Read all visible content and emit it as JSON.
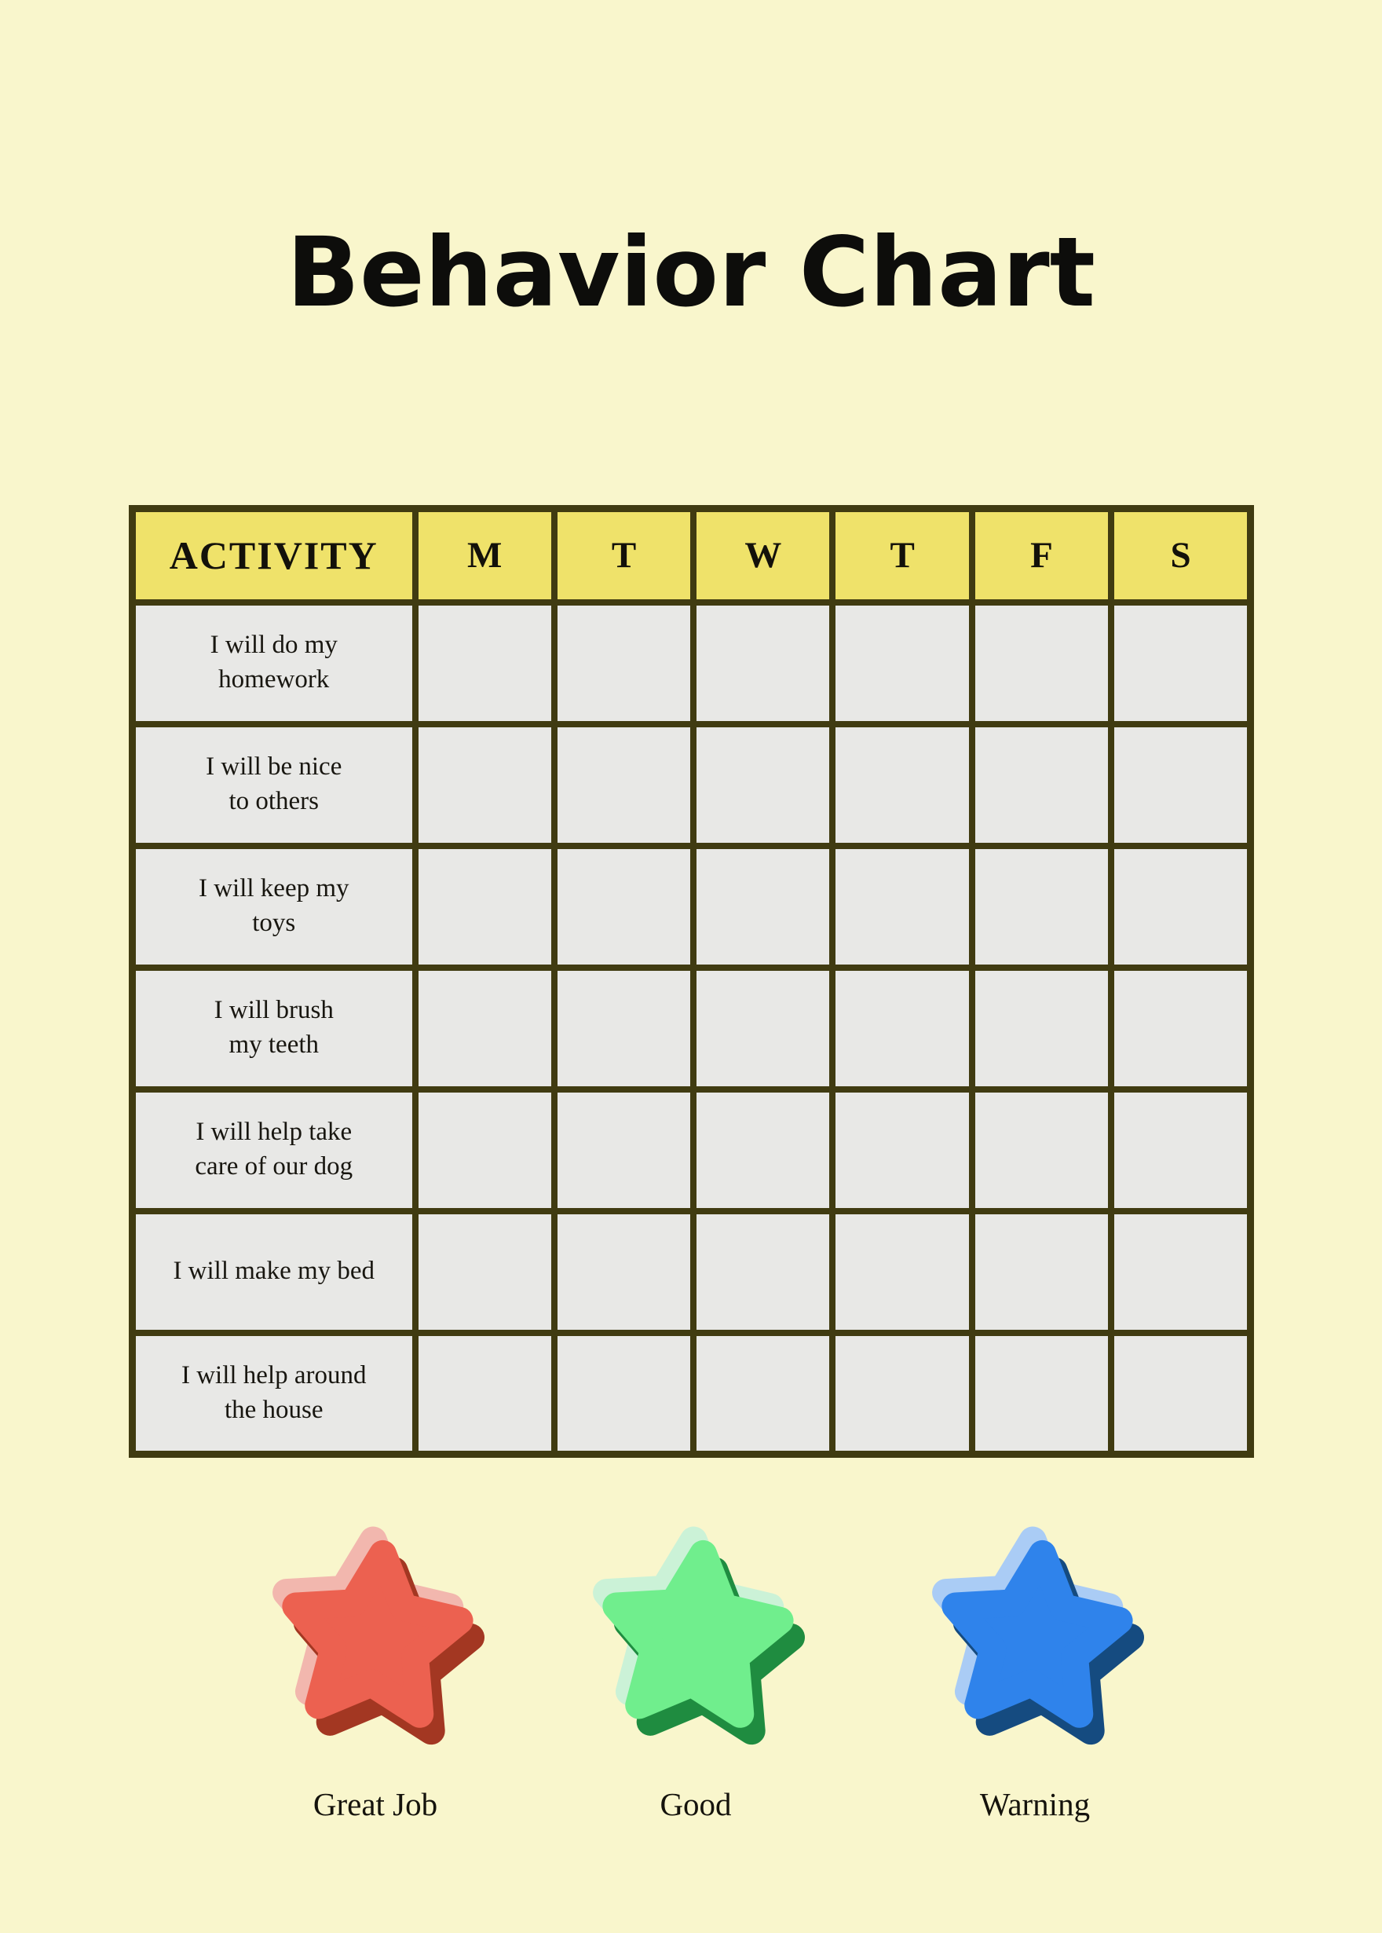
{
  "page_background": "#F9F6CC",
  "title": "Behavior Chart",
  "table": {
    "activity_header": "ACTIVITY",
    "day_headers": [
      "M",
      "T",
      "W",
      "T",
      "F",
      "S"
    ],
    "rows": [
      "I will do my\nhomework",
      "I will be nice\nto others",
      "I will keep my\ntoys",
      "I will brush\nmy teeth",
      "I will help take\ncare of our dog",
      "I will make my bed",
      "I will help around\nthe house"
    ],
    "colors": {
      "header_bg": "#EFE26A",
      "cell_bg": "#E8E8E6",
      "border": "#403B11"
    }
  },
  "legend": {
    "items": [
      {
        "label": "Great Job",
        "icon": "red-star-icon",
        "color": "#EC6150",
        "highlight": "#F2B7AE",
        "shadow": "#A33722"
      },
      {
        "label": "Good",
        "icon": "green-star-icon",
        "color": "#70EE8D",
        "highlight": "#CBF2D7",
        "shadow": "#1F8C40"
      },
      {
        "label": "Warning",
        "icon": "blue-star-icon",
        "color": "#2F83EB",
        "highlight": "#AACCF5",
        "shadow": "#154B80"
      }
    ]
  }
}
